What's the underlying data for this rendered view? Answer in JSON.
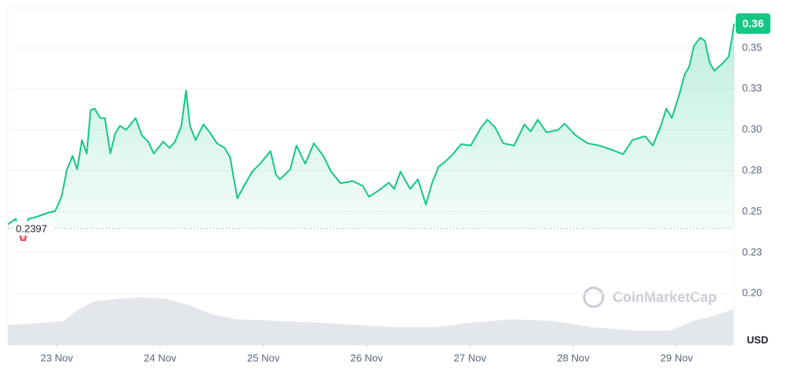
{
  "chart_data": {
    "type": "line",
    "x": [
      -0.473,
      -0.397,
      -0.344,
      -0.305,
      -0.275,
      -0.206,
      -0.076,
      -0.015,
      0.046,
      0.099,
      0.153,
      0.198,
      0.244,
      0.29,
      0.328,
      0.366,
      0.42,
      0.466,
      0.519,
      0.565,
      0.611,
      0.672,
      0.763,
      0.824,
      0.885,
      0.939,
      1.031,
      1.092,
      1.145,
      1.206,
      1.252,
      1.29,
      1.344,
      1.42,
      1.481,
      1.55,
      1.626,
      1.679,
      1.718,
      1.748,
      1.817,
      1.893,
      1.969,
      2.069,
      2.122,
      2.16,
      2.26,
      2.321,
      2.405,
      2.489,
      2.58,
      2.656,
      2.748,
      2.863,
      2.962,
      3.023,
      3.115,
      3.214,
      3.267,
      3.328,
      3.42,
      3.496,
      3.573,
      3.634,
      3.695,
      3.763,
      3.84,
      3.916,
      4.008,
      4.107,
      4.168,
      4.244,
      4.321,
      4.427,
      4.527,
      4.588,
      4.656,
      4.74,
      4.855,
      4.916,
      5.023,
      5.137,
      5.252,
      5.366,
      5.481,
      5.573,
      5.695,
      5.771,
      5.847,
      5.901,
      5.954,
      6.031,
      6.076,
      6.122,
      6.168,
      6.229,
      6.275,
      6.321,
      6.366,
      6.435,
      6.504,
      6.534,
      6.557
    ],
    "values": [
      0.2423,
      0.2456,
      0.2326,
      0.2326,
      0.2456,
      0.2466,
      0.2495,
      0.2504,
      0.2591,
      0.2759,
      0.2841,
      0.2759,
      0.2937,
      0.2855,
      0.312,
      0.313,
      0.3072,
      0.3072,
      0.2855,
      0.2976,
      0.3024,
      0.3,
      0.3072,
      0.2966,
      0.2928,
      0.2855,
      0.2928,
      0.2889,
      0.2928,
      0.3024,
      0.324,
      0.3024,
      0.2937,
      0.3033,
      0.2985,
      0.2918,
      0.2889,
      0.2831,
      0.2687,
      0.2581,
      0.2663,
      0.2745,
      0.2793,
      0.287,
      0.2726,
      0.2697,
      0.2759,
      0.2904,
      0.2793,
      0.2918,
      0.2841,
      0.2745,
      0.2673,
      0.2687,
      0.2658,
      0.2591,
      0.2629,
      0.2677,
      0.2639,
      0.2745,
      0.2639,
      0.2697,
      0.2543,
      0.2677,
      0.2774,
      0.2807,
      0.2855,
      0.2913,
      0.2904,
      0.3014,
      0.3062,
      0.3014,
      0.2918,
      0.2904,
      0.3033,
      0.299,
      0.3062,
      0.2985,
      0.3,
      0.3038,
      0.2966,
      0.2918,
      0.2904,
      0.288,
      0.2851,
      0.2937,
      0.2961,
      0.2904,
      0.3024,
      0.313,
      0.3072,
      0.3226,
      0.3336,
      0.3385,
      0.3514,
      0.3563,
      0.3543,
      0.3409,
      0.3361,
      0.3399,
      0.3447,
      0.3553,
      0.3649
    ],
    "color_up": "#16c784",
    "color_down": "#ea3943",
    "baseline": 0.2397,
    "current_price_label": "0.36",
    "volume": {
      "x": [
        -0.473,
        -0.168,
        0.061,
        0.214,
        0.366,
        0.595,
        0.824,
        1.053,
        1.282,
        1.511,
        1.74,
        2.122,
        2.504,
        2.885,
        3.267,
        3.649,
        4.031,
        4.412,
        4.794,
        5.176,
        5.557,
        5.939,
        6.168,
        6.397,
        6.55
      ],
      "values": [
        25,
        27,
        30,
        45,
        55,
        58,
        60,
        58,
        50,
        38,
        32,
        30,
        28,
        25,
        22,
        22,
        28,
        32,
        30,
        22,
        18,
        18,
        30,
        38,
        45
      ],
      "color": "#e3e6ea"
    },
    "xlim": [
      -0.473,
      6.557
    ],
    "xticks": [
      {
        "value": 0,
        "label": "23 Nov"
      },
      {
        "value": 1,
        "label": "24 Nov"
      },
      {
        "value": 2,
        "label": "25 Nov"
      },
      {
        "value": 3,
        "label": "26 Nov"
      },
      {
        "value": 4,
        "label": "27 Nov"
      },
      {
        "value": 5,
        "label": "28 Nov"
      },
      {
        "value": 6,
        "label": "29 Nov"
      }
    ],
    "ylim": [
      0.1688,
      0.3745
    ],
    "yticks": [
      {
        "value": 0.2,
        "label": "0.20"
      },
      {
        "value": 0.225,
        "label": "0.23"
      },
      0.25,
      {
        "value": 0.275,
        "label": "0.28"
      },
      {
        "value": 0.3,
        "label": "0.30"
      },
      {
        "value": 0.325,
        "label": "0.33"
      },
      0.35
    ],
    "y_unit": "USD",
    "watermark": "CoinMarketCap",
    "grid": true
  }
}
